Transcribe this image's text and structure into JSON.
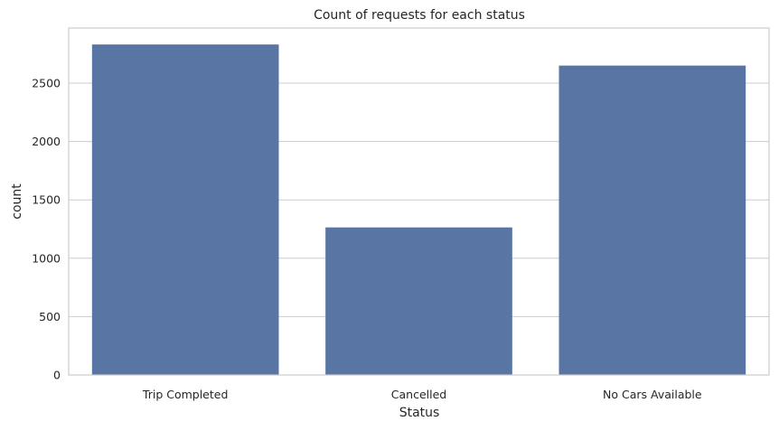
{
  "chart_data": {
    "type": "bar",
    "title": "Count of requests for each status",
    "xlabel": "Status",
    "ylabel": "count",
    "categories": [
      "Trip Completed",
      "Cancelled",
      "No Cars Available"
    ],
    "values": [
      2831,
      1264,
      2650
    ],
    "ylim": [
      0,
      2972
    ],
    "yticks": [
      0,
      500,
      1000,
      1500,
      2000,
      2500
    ],
    "grid": "horizontal",
    "colors": {
      "bar": "#5875a4",
      "grid": "#cccccc",
      "spine": "#cccccc",
      "background": "#ffffff"
    }
  }
}
